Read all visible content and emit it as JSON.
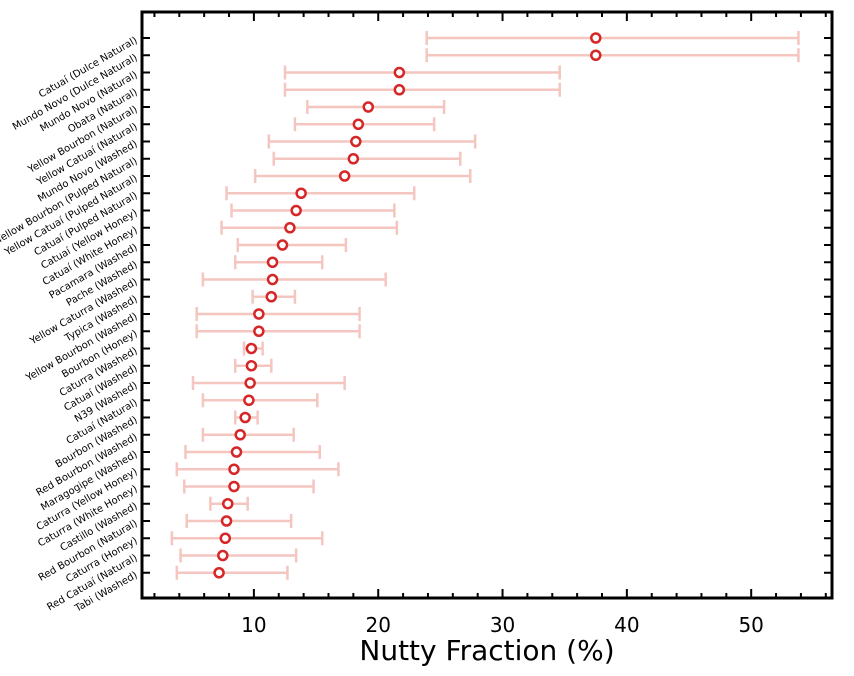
{
  "chart_data": {
    "type": "scatter",
    "title": "",
    "xlabel": "Nutty Fraction (%)",
    "ylabel": "",
    "xlim": [
      1,
      56.5
    ],
    "xticks": [
      10,
      20,
      30,
      40,
      50
    ],
    "xtick_labels": [
      "10",
      "20",
      "30",
      "40",
      "50"
    ],
    "grid": false,
    "marker_color": "#d62728",
    "errorbar_color": "#f5c6c0",
    "categories": [
      "Catuaí (Dulce Natural)",
      "Mundo Novo (Dulce Natural)",
      "Mundo Novo (Natural)",
      "Obata (Natural)",
      "Yellow Bourbon (Natural)",
      "Yellow Catuaí (Natural)",
      "Mundo Novo (Washed)",
      "Yellow Bourbon (Pulped Natural)",
      "Yellow Catuaí (Pulped Natural)",
      "Catuaí (Pulped Natural)",
      "Catuaí (Yellow Honey)",
      "Catuaí (White Honey)",
      "Pacamara (Washed)",
      "Pache (Washed)",
      "Yellow Caturra (Washed)",
      "Typica (Washed)",
      "Yellow Bourbon (Washed)",
      "Bourbon (Honey)",
      "Caturra (Washed)",
      "Catuaí (Washed)",
      "N39 (Washed)",
      "Catuaí (Natural)",
      "Bourbon (Washed)",
      "Red Bourbon (Washed)",
      "Maragogipe (Washed)",
      "Caturra (Yellow Honey)",
      "Caturra (White Honey)",
      "Castillo (Washed)",
      "Red Bourbon (Natural)",
      "Caturra (Honey)",
      "Red Catuaí (Natural)",
      "Tabi (Washed)"
    ],
    "values": [
      37.5,
      37.5,
      21.7,
      21.7,
      19.2,
      18.4,
      18.2,
      18.0,
      17.3,
      13.8,
      13.4,
      12.9,
      12.3,
      11.5,
      11.5,
      11.4,
      10.4,
      10.4,
      9.8,
      9.8,
      9.7,
      9.6,
      9.3,
      8.9,
      8.6,
      8.4,
      8.4,
      7.9,
      7.8,
      7.7,
      7.5,
      7.2
    ],
    "error_low": [
      23.9,
      23.9,
      12.5,
      12.5,
      14.3,
      13.3,
      11.2,
      11.6,
      10.1,
      7.8,
      8.2,
      7.4,
      8.7,
      8.5,
      5.9,
      9.9,
      5.4,
      5.4,
      9.2,
      8.5,
      5.1,
      5.9,
      8.5,
      5.9,
      4.5,
      3.8,
      4.4,
      6.5,
      4.6,
      3.4,
      4.1,
      3.8
    ],
    "error_high": [
      53.8,
      53.8,
      34.6,
      34.6,
      25.3,
      24.5,
      27.8,
      26.6,
      27.4,
      22.9,
      21.3,
      21.5,
      17.4,
      15.5,
      20.6,
      13.3,
      18.5,
      18.5,
      10.7,
      11.4,
      17.3,
      15.1,
      10.3,
      13.2,
      15.3,
      16.8,
      14.8,
      9.5,
      13.0,
      15.5,
      13.4,
      12.7
    ]
  }
}
